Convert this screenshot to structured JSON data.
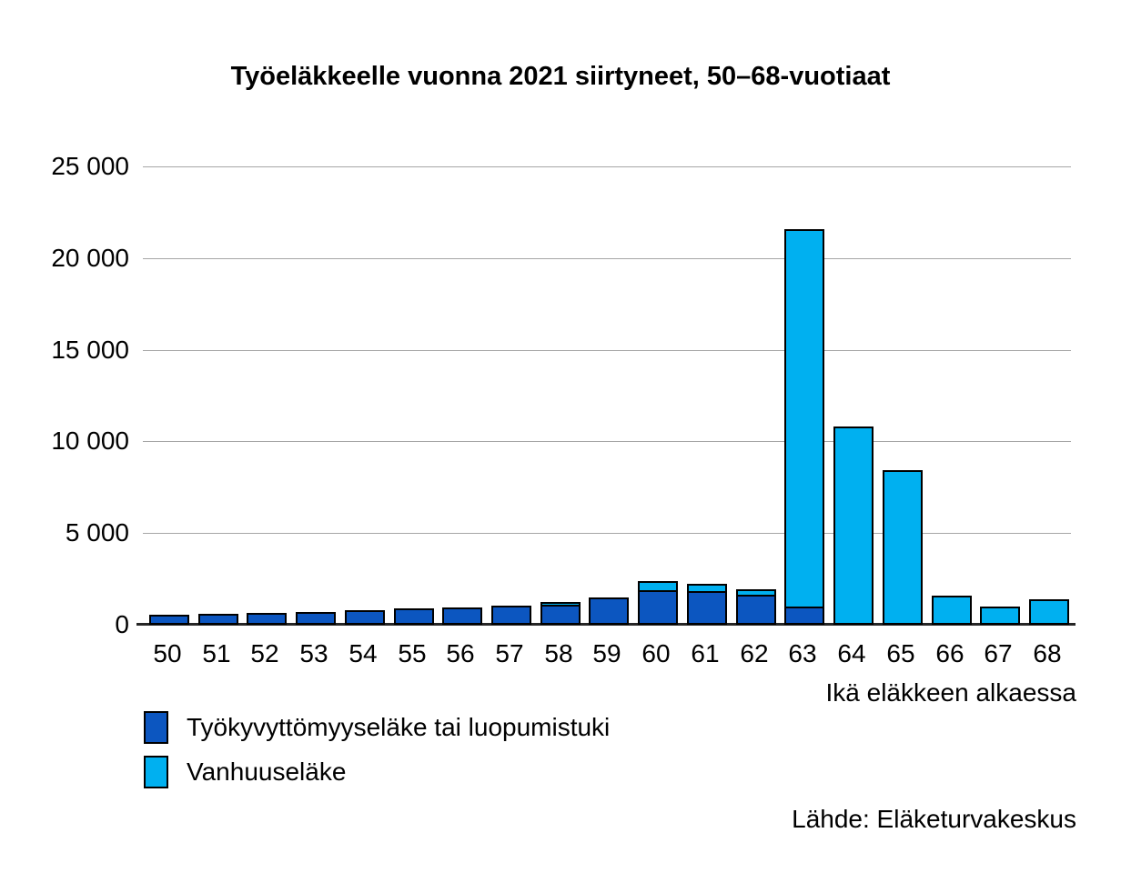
{
  "title": "Työeläkkeelle vuonna 2021 siirtyneet, 50–68-vuotiaat",
  "colors": {
    "disability": "#0C56C0",
    "old_age": "#00B0F0",
    "gridline": "#A6A6A6",
    "axis": "#262626",
    "outline": "#000000"
  },
  "y_axis": {
    "ticks": [
      "0",
      "5 000",
      "10 000",
      "15 000",
      "20 000",
      "25 000"
    ]
  },
  "x_axis": {
    "label": "Ikä eläkkeen alkaessa"
  },
  "legend": {
    "items": [
      {
        "label": "Työkyvyttömyyseläke tai luopumistuki",
        "color_key": "disability"
      },
      {
        "label": "Vanhuuseläke",
        "color_key": "old_age"
      }
    ]
  },
  "source": "Lähde: Eläketurvakeskus",
  "chart_data": {
    "type": "bar",
    "stacked": true,
    "title": "Työeläkkeelle vuonna 2021 siirtyneet, 50–68-vuotiaat",
    "xlabel": "Ikä eläkkeen alkaessa",
    "ylabel": "",
    "ylim": [
      0,
      25000
    ],
    "grid": true,
    "legend_position": "bottom-left",
    "categories": [
      50,
      51,
      52,
      53,
      54,
      55,
      56,
      57,
      58,
      59,
      60,
      61,
      62,
      63,
      64,
      65,
      66,
      67,
      68
    ],
    "series": [
      {
        "name": "Työkyvyttömyyseläke tai luopumistuki",
        "color_key": "disability",
        "values": [
          330,
          380,
          430,
          520,
          600,
          680,
          720,
          820,
          1000,
          1300,
          1800,
          1750,
          1550,
          900,
          0,
          0,
          0,
          0,
          0
        ]
      },
      {
        "name": "Vanhuuseläke",
        "color_key": "old_age",
        "values": [
          0,
          0,
          0,
          0,
          0,
          0,
          0,
          0,
          50,
          0,
          400,
          300,
          200,
          20500,
          10600,
          8250,
          1400,
          800,
          1200
        ]
      }
    ]
  }
}
